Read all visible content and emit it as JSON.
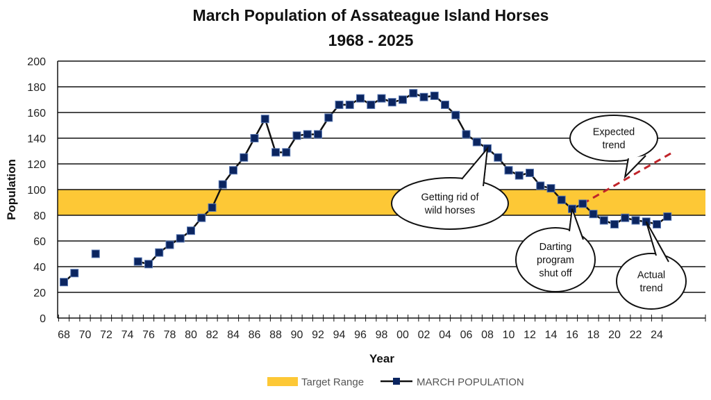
{
  "chart_data": {
    "type": "line",
    "title": [
      "March Population of Assateague Island Horses",
      "1968 - 2025"
    ],
    "xlabel": "Year",
    "ylabel": "Population",
    "ylim": [
      0,
      200
    ],
    "yticks": [
      0,
      20,
      40,
      60,
      80,
      100,
      120,
      140,
      160,
      180,
      200
    ],
    "xlim": [
      1968,
      2025
    ],
    "xtick_labels": [
      "68",
      "70",
      "72",
      "74",
      "76",
      "78",
      "80",
      "82",
      "84",
      "86",
      "88",
      "90",
      "92",
      "94",
      "96",
      "98",
      "00",
      "02",
      "04",
      "06",
      "08",
      "10",
      "12",
      "14",
      "16",
      "18",
      "20",
      "22",
      "24"
    ],
    "grid": true,
    "target_range": {
      "name": "Target Range",
      "low": 80,
      "high": 100,
      "color": "#FDC836"
    },
    "series": [
      {
        "name": "MARCH POPULATION",
        "color": "#0B2560",
        "x": [
          1968,
          1969,
          1971,
          1975,
          1976,
          1977,
          1978,
          1979,
          1980,
          1981,
          1982,
          1983,
          1984,
          1985,
          1986,
          1987,
          1988,
          1989,
          1990,
          1991,
          1992,
          1993,
          1994,
          1995,
          1996,
          1997,
          1998,
          1999,
          2000,
          2001,
          2002,
          2003,
          2004,
          2005,
          2006,
          2007,
          2008,
          2009,
          2010,
          2011,
          2012,
          2013,
          2014,
          2015,
          2016,
          2017,
          2018,
          2019,
          2020,
          2021,
          2022,
          2023,
          2024,
          2025
        ],
        "values": [
          28,
          35,
          50,
          44,
          42,
          51,
          57,
          62,
          68,
          78,
          86,
          104,
          115,
          125,
          140,
          155,
          129,
          129,
          142,
          143,
          143,
          156,
          166,
          166,
          171,
          166,
          171,
          168,
          170,
          175,
          172,
          173,
          166,
          158,
          143,
          137,
          132,
          125,
          115,
          111,
          113,
          103,
          101,
          92,
          85,
          89,
          81,
          76,
          73,
          78,
          76,
          75,
          73,
          79
        ]
      }
    ],
    "expected_trend": {
      "x": [
        2017,
        2025.5
      ],
      "values": [
        89,
        129
      ],
      "color": "#C0242A"
    },
    "annotations": [
      {
        "text": [
          "Getting rid of",
          "wild horses"
        ],
        "x": 2008,
        "y": 132
      },
      {
        "text": [
          "Expected",
          "trend"
        ],
        "x": 2021,
        "y": 110
      },
      {
        "text": [
          "Darting",
          "program",
          "shut off"
        ],
        "x": 2016,
        "y": 85
      },
      {
        "text": [
          "Actual",
          "trend"
        ],
        "x": 2023,
        "y": 75
      }
    ],
    "legend": "bottom"
  }
}
